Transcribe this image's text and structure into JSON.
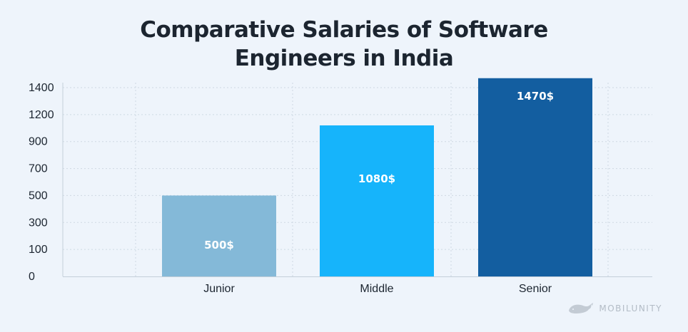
{
  "chart_data": {
    "type": "bar",
    "title": "Comparative Salaries of Software Engineers in India",
    "title_lines": [
      "Comparative Salaries of Software",
      "Engineers in India"
    ],
    "categories": [
      "Junior",
      "Middle",
      "Senior"
    ],
    "values": [
      500,
      1080,
      1470
    ],
    "data_labels": [
      "500$",
      "1080$",
      "1470$"
    ],
    "colors": [
      "#84b9d8",
      "#16b4fb",
      "#135ea0"
    ],
    "yticks": [
      "0",
      "100",
      "300",
      "500",
      "700",
      "900",
      "1200",
      "1400"
    ],
    "grid": true,
    "xlabel": "",
    "ylabel": ""
  },
  "brand": {
    "logo_text": "MOBILUNITY",
    "logo_icon": "whale-icon"
  }
}
